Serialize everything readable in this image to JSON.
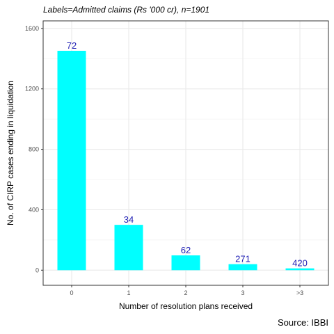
{
  "chart_data": {
    "type": "bar",
    "subtitle": "Labels=Admitted claims (Rs '000 cr), n=1901",
    "categories": [
      "0",
      "1",
      "2",
      "3",
      ">3"
    ],
    "values": [
      1452,
      300,
      98,
      40,
      12
    ],
    "data_labels": [
      "72",
      "34",
      "62",
      "271",
      "420"
    ],
    "xlabel": "Number of resolution plans received",
    "ylabel": "No. of CIRP cases ending in liquidation",
    "ylim": [
      -100,
      1650
    ],
    "yticks": [
      0,
      400,
      800,
      1200,
      1600
    ],
    "grid": true,
    "bar_color": "#00ffff",
    "label_color": "#1f1fb4",
    "caption": "Source: IBBI"
  }
}
